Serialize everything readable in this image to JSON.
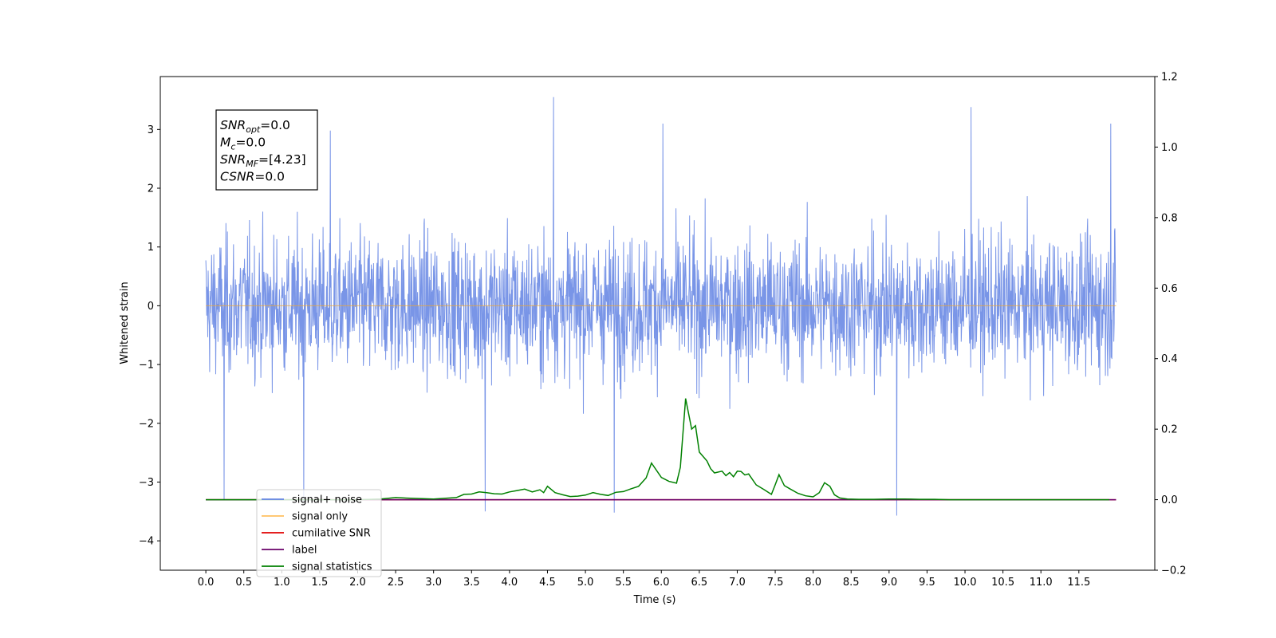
{
  "chart_data": {
    "type": "line",
    "title": "",
    "xlabel": "Time (s)",
    "ylabel": "Whitened strain",
    "y2label": "",
    "xlim": [
      -0.6,
      12.5
    ],
    "ylim": [
      -4.5,
      3.9
    ],
    "y2lim": [
      -0.2,
      1.2
    ],
    "x_ticks": [
      0.0,
      0.5,
      1.0,
      1.5,
      2.0,
      2.5,
      3.0,
      3.5,
      4.0,
      4.5,
      5.0,
      5.5,
      6.0,
      6.5,
      7.0,
      7.5,
      8.0,
      8.5,
      9.0,
      9.5,
      10.0,
      10.5,
      11.0,
      11.5
    ],
    "x_tick_labels": [
      "0.0",
      "0.5",
      "1.0",
      "1.5",
      "2.0",
      "2.5",
      "3.0",
      "3.5",
      "4.0",
      "4.5",
      "5.0",
      "5.5",
      "6.0",
      "6.5",
      "7.0",
      "7.5",
      "8.0",
      "8.5",
      "9.0",
      "9.5",
      "10.0",
      "10.5",
      "11.0",
      "11.5"
    ],
    "y_ticks": [
      -4,
      -3,
      -2,
      -1,
      0,
      1,
      2,
      3
    ],
    "y_tick_labels": [
      "−4",
      "−3",
      "−2",
      "−1",
      "0",
      "1",
      "2",
      "3"
    ],
    "y2_ticks": [
      -0.2,
      0.0,
      0.2,
      0.4,
      0.6,
      0.8,
      1.0,
      1.2
    ],
    "y2_tick_labels": [
      "−0.2",
      "0.0",
      "0.2",
      "0.4",
      "0.6",
      "0.8",
      "1.0",
      "1.2"
    ],
    "grid": false,
    "legend_position": "lower-left",
    "series": [
      {
        "name": "signal+ noise",
        "axis": "left",
        "color": "#6283e3",
        "description_values": "dense whitened noise, roughly within -2.3 to 2.3, with spikes between about -3.6 and 3.55",
        "x_range": [
          0.0,
          11.99
        ],
        "envelope_low": -2.3,
        "envelope_high": 2.3,
        "peaks": [
          {
            "x": 0.24,
            "y": -3.3
          },
          {
            "x": 1.29,
            "y": -3.35
          },
          {
            "x": 1.64,
            "y": 2.98
          },
          {
            "x": 3.68,
            "y": -3.5
          },
          {
            "x": 4.58,
            "y": 3.55
          },
          {
            "x": 5.38,
            "y": -3.52
          },
          {
            "x": 6.02,
            "y": 3.1
          },
          {
            "x": 9.1,
            "y": -3.57
          },
          {
            "x": 10.08,
            "y": 3.38
          },
          {
            "x": 11.92,
            "y": 3.1
          }
        ]
      },
      {
        "name": "signal only",
        "axis": "left",
        "color": "#f5a623",
        "x": [
          0.0,
          11.99
        ],
        "y": [
          0.0,
          0.0
        ]
      },
      {
        "name": "cumilative SNR",
        "axis": "right",
        "color": "#e00000",
        "x": [
          0.0,
          11.99
        ],
        "y": [
          0.0,
          0.0
        ]
      },
      {
        "name": "label",
        "axis": "right",
        "color": "#6a006a",
        "x": [
          0.0,
          11.99
        ],
        "y": [
          0.0,
          0.0
        ]
      },
      {
        "name": "signal statistics",
        "axis": "right",
        "color": "#008000",
        "x": [
          0.0,
          2.0,
          2.3,
          2.5,
          2.7,
          3.0,
          3.3,
          3.4,
          3.5,
          3.6,
          3.7,
          3.8,
          3.9,
          4.0,
          4.1,
          4.2,
          4.3,
          4.4,
          4.45,
          4.5,
          4.6,
          4.7,
          4.8,
          4.9,
          5.0,
          5.1,
          5.2,
          5.3,
          5.4,
          5.5,
          5.6,
          5.7,
          5.8,
          5.87,
          6.0,
          6.1,
          6.2,
          6.25,
          6.32,
          6.4,
          6.45,
          6.5,
          6.6,
          6.65,
          6.7,
          6.8,
          6.85,
          6.9,
          6.95,
          7.0,
          7.05,
          7.1,
          7.15,
          7.25,
          7.35,
          7.45,
          7.5,
          7.55,
          7.62,
          7.7,
          7.8,
          7.9,
          8.0,
          8.08,
          8.15,
          8.22,
          8.28,
          8.35,
          8.45,
          8.6,
          8.8,
          9.0,
          9.2,
          9.4,
          9.6,
          9.8,
          10.0,
          11.0,
          11.9
        ],
        "y": [
          0.0,
          0.0,
          0.002,
          0.006,
          0.004,
          0.002,
          0.006,
          0.015,
          0.016,
          0.022,
          0.02,
          0.017,
          0.016,
          0.022,
          0.026,
          0.03,
          0.022,
          0.028,
          0.02,
          0.038,
          0.02,
          0.014,
          0.009,
          0.01,
          0.013,
          0.02,
          0.015,
          0.012,
          0.021,
          0.023,
          0.031,
          0.038,
          0.062,
          0.104,
          0.063,
          0.052,
          0.047,
          0.092,
          0.287,
          0.2,
          0.21,
          0.135,
          0.11,
          0.088,
          0.076,
          0.081,
          0.068,
          0.077,
          0.065,
          0.081,
          0.08,
          0.07,
          0.073,
          0.042,
          0.029,
          0.015,
          0.042,
          0.071,
          0.04,
          0.03,
          0.018,
          0.011,
          0.008,
          0.02,
          0.048,
          0.038,
          0.014,
          0.005,
          0.002,
          0.001,
          0.001,
          0.002,
          0.002,
          0.001,
          0.001,
          0.0,
          0.0,
          0.0,
          0.0
        ]
      }
    ]
  },
  "stats_box": {
    "lines": [
      {
        "var": "SNR",
        "sub": "opt",
        "value": "=0.0"
      },
      {
        "var": "M",
        "sub": "c",
        "value": "=0.0"
      },
      {
        "var": "SNR",
        "sub": "MF",
        "value": "=[4.23]"
      },
      {
        "var": "CSNR",
        "sub": "",
        "value": "=0.0"
      }
    ]
  },
  "legend": {
    "items": [
      {
        "label": "signal+ noise",
        "color": "#6283e3"
      },
      {
        "label": "signal only",
        "color": "#ffc060"
      },
      {
        "label": "cumilative SNR",
        "color": "#e00000"
      },
      {
        "label": "label",
        "color": "#6a006a"
      },
      {
        "label": "signal statistics",
        "color": "#008000"
      }
    ]
  }
}
